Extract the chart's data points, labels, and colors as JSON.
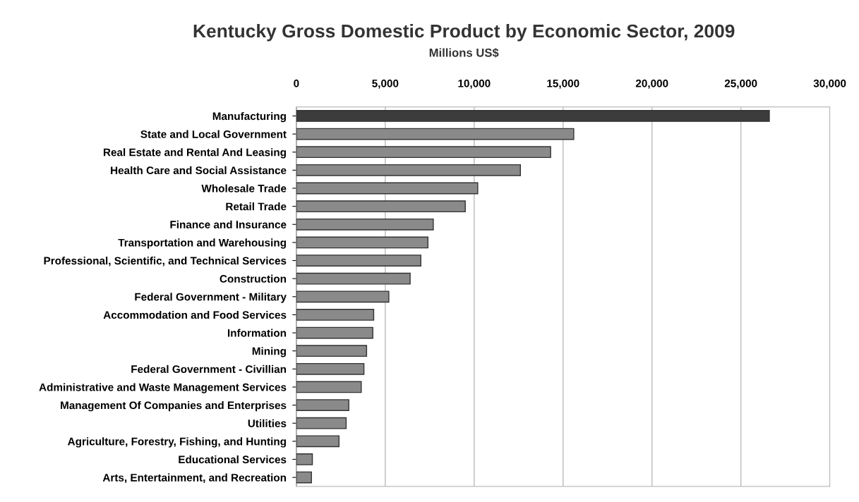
{
  "chart_data": {
    "type": "bar",
    "orientation": "horizontal",
    "title": "Kentucky Gross Domestic Product by Economic Sector, 2009",
    "subtitle": "Millions US$",
    "categories": [
      "Manufacturing",
      "State and Local Government",
      "Real Estate and Rental And Leasing",
      "Health Care and Social Assistance",
      "Wholesale Trade",
      "Retail Trade",
      "Finance and Insurance",
      "Transportation and Warehousing",
      "Professional, Scientific, and Technical Services",
      "Construction",
      "Federal Government - Military",
      "Accommodation and Food Services",
      "Information",
      "Mining",
      "Federal Government - Civillian",
      "Administrative and Waste Management Services",
      "Management Of Companies and Enterprises",
      "Utilities",
      "Agriculture, Forestry, Fishing, and Hunting",
      "Educational Services",
      "Arts, Entertainment, and Recreation"
    ],
    "values": [
      26600,
      15600,
      14300,
      12600,
      10200,
      9500,
      7700,
      7400,
      7000,
      6400,
      5200,
      4350,
      4300,
      3950,
      3800,
      3650,
      2950,
      2800,
      2400,
      900,
      850
    ],
    "colors": [
      "#3c3c3c",
      "#8a8a8a",
      "#8a8a8a",
      "#8a8a8a",
      "#8a8a8a",
      "#8a8a8a",
      "#8a8a8a",
      "#8a8a8a",
      "#8a8a8a",
      "#8a8a8a",
      "#8a8a8a",
      "#8a8a8a",
      "#8a8a8a",
      "#8a8a8a",
      "#8a8a8a",
      "#8a8a8a",
      "#8a8a8a",
      "#8a8a8a",
      "#8a8a8a",
      "#8a8a8a",
      "#8a8a8a"
    ],
    "xlim": [
      0,
      30000
    ],
    "xticks": [
      0,
      {
        "value": 5000,
        "label": "5,000"
      },
      {
        "value": 10000,
        "label": "10,000"
      },
      {
        "value": 15000,
        "label": "15,000"
      },
      {
        "value": 20000,
        "label": "20,000"
      },
      {
        "value": 25000,
        "label": "25,000"
      },
      {
        "value": 30000,
        "label": "30,000"
      }
    ],
    "grid": "x",
    "legend": false
  }
}
